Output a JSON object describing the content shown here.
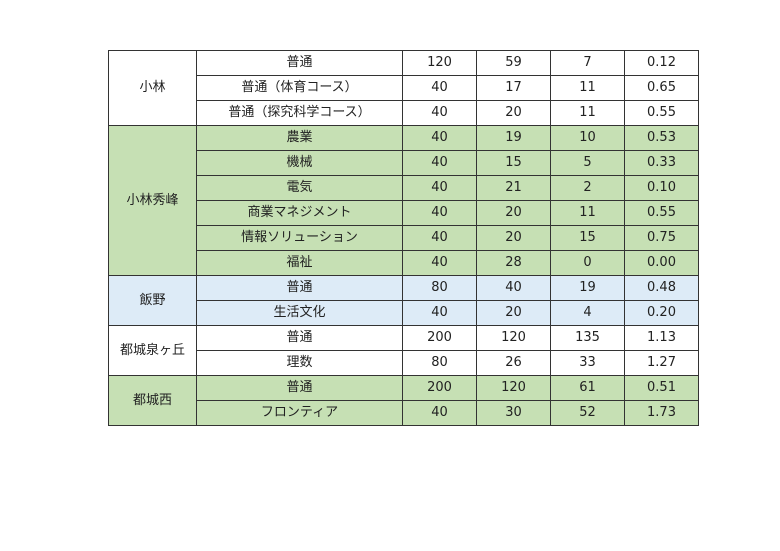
{
  "groups": [
    {
      "school": "小林",
      "color": "#ffffff",
      "rows": [
        [
          "普通",
          "120",
          "59",
          "7",
          "0.12"
        ],
        [
          "普通（体育コース）",
          "40",
          "17",
          "11",
          "0.65"
        ],
        [
          "普通（探究科学コース）",
          "40",
          "20",
          "11",
          "0.55"
        ]
      ]
    },
    {
      "school": "小林秀峰",
      "color": "#c6e0b4",
      "rows": [
        [
          "農業",
          "40",
          "19",
          "10",
          "0.53"
        ],
        [
          "機械",
          "40",
          "15",
          "5",
          "0.33"
        ],
        [
          "電気",
          "40",
          "21",
          "2",
          "0.10"
        ],
        [
          "商業マネジメント",
          "40",
          "20",
          "11",
          "0.55"
        ],
        [
          "情報ソリューション",
          "40",
          "20",
          "15",
          "0.75"
        ],
        [
          "福祉",
          "40",
          "28",
          "0",
          "0.00"
        ]
      ]
    },
    {
      "school": "飯野",
      "color": "#ddebf7",
      "rows": [
        [
          "普通",
          "80",
          "40",
          "19",
          "0.48"
        ],
        [
          "生活文化",
          "40",
          "20",
          "4",
          "0.20"
        ]
      ]
    },
    {
      "school": "都城泉ヶ丘",
      "color": "#ffffff",
      "rows": [
        [
          "普通",
          "200",
          "120",
          "135",
          "1.13"
        ],
        [
          "理数",
          "80",
          "26",
          "33",
          "1.27"
        ]
      ]
    },
    {
      "school": "都城西",
      "color": "#c6e0b4",
      "rows": [
        [
          "普通",
          "200",
          "120",
          "61",
          "0.51"
        ],
        [
          "フロンティア",
          "40",
          "30",
          "52",
          "1.73"
        ]
      ]
    }
  ]
}
